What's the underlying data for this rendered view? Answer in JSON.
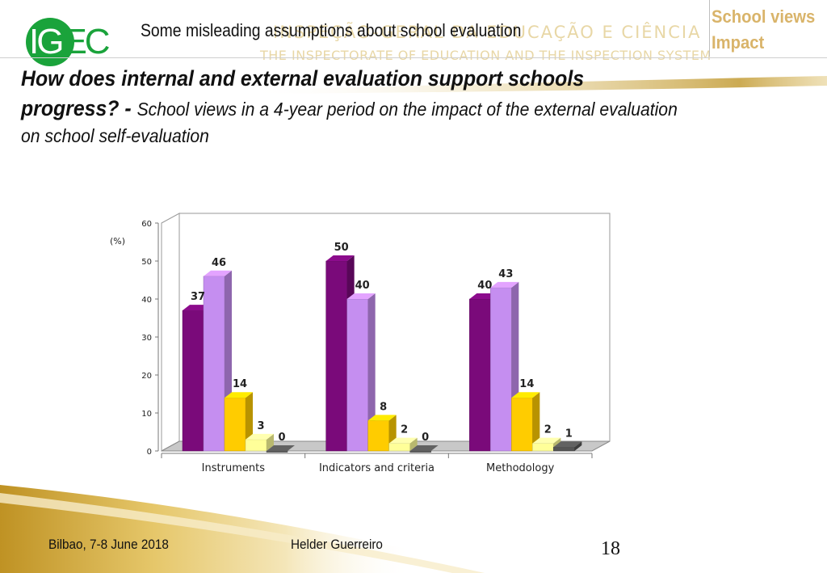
{
  "header": {
    "logo_text": "IGEC",
    "topic": "Some misleading assumptions about school evaluation",
    "watermark_line1": "INSPEÇÃO-GERAL DA EDUCAÇÃO E CIÊNCIA",
    "watermark_line2": "THE INSPECTORATE OF EDUCATION AND THE INSPECTION SYSTEM",
    "side_line1": "School views",
    "side_line2": "Impact"
  },
  "heading": {
    "line1": "How does internal and external evaluation support schools",
    "line2_bold": "progress?",
    "line2_dash": " - ",
    "line2_rest": "School views in a 4-year period on the impact of the external evaluation",
    "line3": "on school self-evaluation"
  },
  "chart_data": {
    "type": "bar",
    "ylabel": "(%)",
    "ylim": [
      0,
      60
    ],
    "yticks": [
      0,
      10,
      20,
      30,
      40,
      50,
      60
    ],
    "categories": [
      "Instruments",
      "Indicators and criteria",
      "Methodology"
    ],
    "series": [
      {
        "values": [
          37,
          50,
          40
        ],
        "color": "#7a0a7a"
      },
      {
        "values": [
          46,
          40,
          43
        ],
        "color": "#c58ef0"
      },
      {
        "values": [
          14,
          8,
          14
        ],
        "color": "#ffcc00"
      },
      {
        "values": [
          3,
          2,
          2
        ],
        "color": "#ffff99"
      },
      {
        "values": [
          0,
          0,
          1
        ],
        "color": "#555555"
      }
    ],
    "legend": "none",
    "grid": false
  },
  "footer": {
    "left": "Bilbao, 7-8 June 2018",
    "middle": "Helder Guerreiro",
    "page": "18"
  }
}
